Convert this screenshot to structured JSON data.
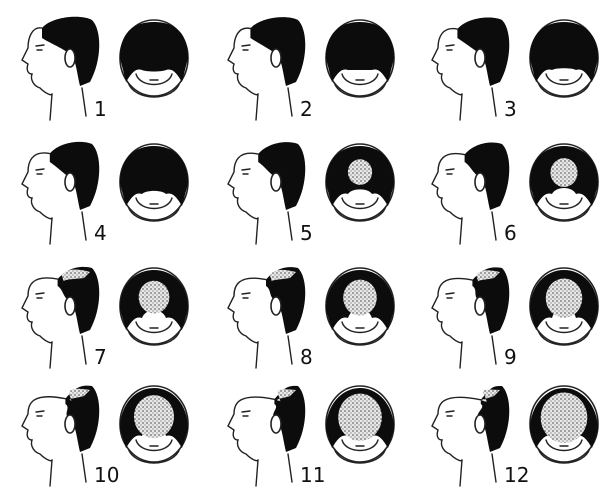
{
  "stages": [
    {
      "label": "1",
      "hair_level": 0.0
    },
    {
      "label": "2",
      "hair_level": 0.08
    },
    {
      "label": "3",
      "hair_level": 0.18
    },
    {
      "label": "4",
      "hair_level": 0.26
    },
    {
      "label": "5",
      "hair_level": 0.34
    },
    {
      "label": "6",
      "hair_level": 0.42
    },
    {
      "label": "7",
      "hair_level": 0.52
    },
    {
      "label": "8",
      "hair_level": 0.6
    },
    {
      "label": "9",
      "hair_level": 0.68
    },
    {
      "label": "10",
      "hair_level": 0.78
    },
    {
      "label": "11",
      "hair_level": 0.88
    },
    {
      "label": "12",
      "hair_level": 0.96
    }
  ],
  "colors": {
    "hair": "#0c0c0c",
    "thinning": "#9a9a9a",
    "outline": "#222222",
    "background": "#ffffff"
  },
  "icons": [
    "profile-head-icon",
    "top-view-head-icon"
  ]
}
